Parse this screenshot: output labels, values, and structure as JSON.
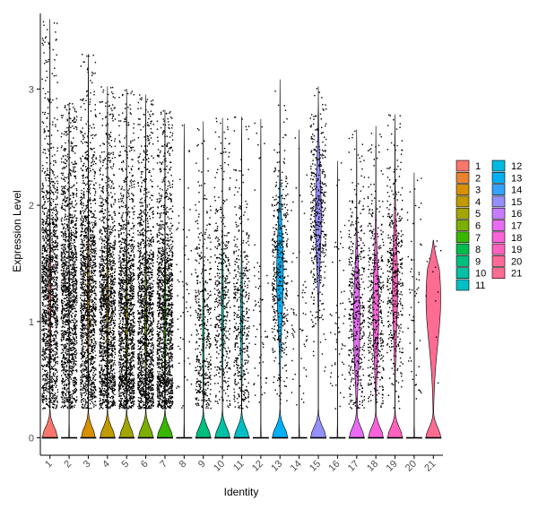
{
  "chart_data": {
    "type": "violin",
    "xlabel": "Identity",
    "ylabel": "Expression Level",
    "ylim": [
      -0.15,
      3.65
    ],
    "yticks": [
      0,
      1,
      2,
      3
    ],
    "categories": [
      "1",
      "2",
      "3",
      "4",
      "5",
      "6",
      "7",
      "8",
      "9",
      "10",
      "11",
      "12",
      "13",
      "14",
      "15",
      "16",
      "17",
      "18",
      "19",
      "20",
      "21"
    ],
    "colors": [
      "#F8766D",
      "#EA8331",
      "#D89000",
      "#C09B00",
      "#A3A500",
      "#7CAE00",
      "#39B600",
      "#00BB4E",
      "#00BF7D",
      "#00C1A3",
      "#00BFC4",
      "#00BAE0",
      "#00B0F6",
      "#35A2FF",
      "#9590FF",
      "#C77CFF",
      "#E76BF3",
      "#FA62DB",
      "#FF62BC",
      "#FF6A98",
      "#FF6C91"
    ],
    "max_values": [
      3.6,
      2.88,
      3.3,
      3.02,
      3.0,
      2.95,
      2.82,
      2.7,
      2.72,
      2.75,
      2.76,
      2.74,
      3.08,
      2.65,
      3.02,
      2.38,
      2.65,
      2.68,
      2.78,
      2.28,
      1.7
    ],
    "density": [
      {
        "zero_width": 0.42,
        "body_width": 0.05,
        "body_center": 1.2,
        "points": "dense"
      },
      {
        "zero_width": 0.02,
        "body_width": 0.0,
        "body_center": 1.2,
        "points": "dense"
      },
      {
        "zero_width": 0.38,
        "body_width": 0.05,
        "body_center": 1.2,
        "points": "dense"
      },
      {
        "zero_width": 0.4,
        "body_width": 0.05,
        "body_center": 1.1,
        "points": "dense"
      },
      {
        "zero_width": 0.38,
        "body_width": 0.05,
        "body_center": 1.0,
        "points": "dense"
      },
      {
        "zero_width": 0.4,
        "body_width": 0.05,
        "body_center": 1.0,
        "points": "dense"
      },
      {
        "zero_width": 0.42,
        "body_width": 0.05,
        "body_center": 1.0,
        "points": "dense"
      },
      {
        "zero_width": 0.02,
        "body_width": 0.0,
        "body_center": 1.0,
        "points": "sparse"
      },
      {
        "zero_width": 0.4,
        "body_width": 0.04,
        "body_center": 0.9,
        "points": "medium"
      },
      {
        "zero_width": 0.4,
        "body_width": 0.05,
        "body_center": 1.1,
        "points": "medium"
      },
      {
        "zero_width": 0.4,
        "body_width": 0.05,
        "body_center": 1.0,
        "points": "medium"
      },
      {
        "zero_width": 0.02,
        "body_width": 0.0,
        "body_center": 1.0,
        "points": "sparse"
      },
      {
        "zero_width": 0.42,
        "body_width": 0.18,
        "body_center": 1.4,
        "points": "medium"
      },
      {
        "zero_width": 0.02,
        "body_width": 0.0,
        "body_center": 1.0,
        "points": "sparse"
      },
      {
        "zero_width": 0.42,
        "body_width": 0.16,
        "body_center": 1.9,
        "points": "medium"
      },
      {
        "zero_width": 0.02,
        "body_width": 0.0,
        "body_center": 1.0,
        "points": "sparse"
      },
      {
        "zero_width": 0.4,
        "body_width": 0.18,
        "body_center": 1.0,
        "points": "medium"
      },
      {
        "zero_width": 0.4,
        "body_width": 0.16,
        "body_center": 1.1,
        "points": "medium"
      },
      {
        "zero_width": 0.4,
        "body_width": 0.14,
        "body_center": 1.3,
        "points": "medium"
      },
      {
        "zero_width": 0.02,
        "body_width": 0.0,
        "body_center": 1.0,
        "points": "sparse"
      },
      {
        "zero_width": 0.4,
        "body_width": 0.4,
        "body_center": 1.2,
        "points": "few"
      }
    ],
    "legend": {
      "columns": [
        [
          "1",
          "2",
          "3",
          "4",
          "5",
          "6",
          "7",
          "8",
          "9",
          "10",
          "11"
        ],
        [
          "12",
          "13",
          "14",
          "15",
          "16",
          "17",
          "18",
          "19",
          "20",
          "21"
        ]
      ],
      "placement": "right"
    },
    "grid": false
  }
}
